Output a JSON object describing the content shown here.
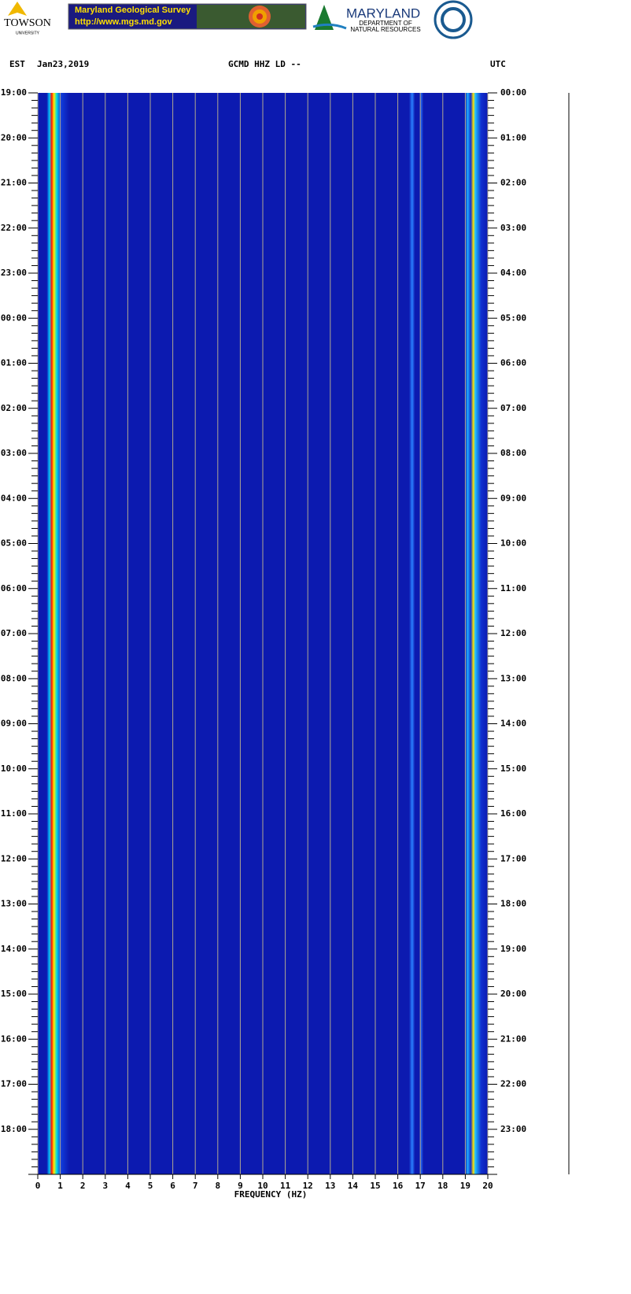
{
  "header": {
    "towson": "TOWSON",
    "towson_sub": "UNIVERSITY",
    "mgs_title": "Maryland Geological Survey",
    "mgs_url": "http://www.mgs.md.gov",
    "dnr_title": "MARYLAND",
    "dnr_sub1": "DEPARTMENT OF",
    "dnr_sub2": "NATURAL RESOURCES"
  },
  "chart_data": {
    "type": "spectrogram",
    "title": "GCMD HHZ LD --",
    "left_label": "EST",
    "date": "Jan23,2019",
    "right_label": "UTC",
    "x_label": "FREQUENCY (HZ)",
    "xlim": [
      0,
      20
    ],
    "xticks": [
      0,
      1,
      2,
      3,
      4,
      5,
      6,
      7,
      8,
      9,
      10,
      11,
      12,
      13,
      14,
      15,
      16,
      17,
      18,
      19,
      20
    ],
    "grid": true,
    "left_times": [
      "19:00",
      "20:00",
      "21:00",
      "22:00",
      "23:00",
      "00:00",
      "01:00",
      "02:00",
      "03:00",
      "04:00",
      "05:00",
      "06:00",
      "07:00",
      "08:00",
      "09:00",
      "10:00",
      "11:00",
      "12:00",
      "13:00",
      "14:00",
      "15:00",
      "16:00",
      "17:00",
      "18:00"
    ],
    "right_times": [
      "00:00",
      "01:00",
      "02:00",
      "03:00",
      "04:00",
      "05:00",
      "06:00",
      "07:00",
      "08:00",
      "09:00",
      "10:00",
      "11:00",
      "12:00",
      "13:00",
      "14:00",
      "15:00",
      "16:00",
      "17:00",
      "18:00",
      "19:00",
      "20:00",
      "21:00",
      "22:00",
      "23:00"
    ]
  }
}
